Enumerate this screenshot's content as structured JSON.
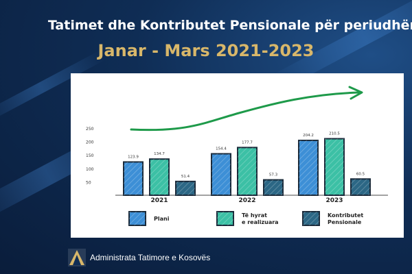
{
  "header": {
    "title": "Tatimet dhe Kontributet Pensionale për periudhën",
    "subtitle": "Janar - Mars  2021-2023"
  },
  "footer": {
    "org_name": "Administrata Tatimore e Kosovës",
    "logo_icon": "atk-logo-icon"
  },
  "colors": {
    "background": "#0f2d55",
    "accent_gold": "#d8b76a",
    "plani": "#3d8fd6",
    "realizuara": "#3cc0a5",
    "kontributet": "#2c6785",
    "trend_arrow": "#1e9a4a"
  },
  "chart_data": {
    "type": "bar",
    "categories": [
      "2021",
      "2022",
      "2023"
    ],
    "series": [
      {
        "name": "Plani",
        "values": [
          123.9,
          154.4,
          204.2
        ]
      },
      {
        "name": "Të hyrat e realizuara",
        "values": [
          134.7,
          177.7,
          210.5
        ]
      },
      {
        "name": "Kontributet Pensionale",
        "values": [
          51.4,
          57.3,
          60.5
        ]
      }
    ],
    "data_labels": [
      [
        "123.9",
        "154.4",
        "204.2"
      ],
      [
        "134.7",
        "177.7",
        "210.5"
      ],
      [
        "51.4",
        "57.3",
        "60.5"
      ]
    ],
    "yticks": [
      50,
      100,
      150,
      200,
      250
    ],
    "ylim": [
      0,
      250
    ],
    "legend": {
      "placement": "bottom",
      "items": [
        {
          "line1": "Plani",
          "line2": ""
        },
        {
          "line1": "Të hyrat",
          "line2": "e realizuara"
        },
        {
          "line1": "Kontributet",
          "line2": "Pensionale"
        }
      ]
    },
    "trend_arrow": "increasing",
    "grid": false
  }
}
